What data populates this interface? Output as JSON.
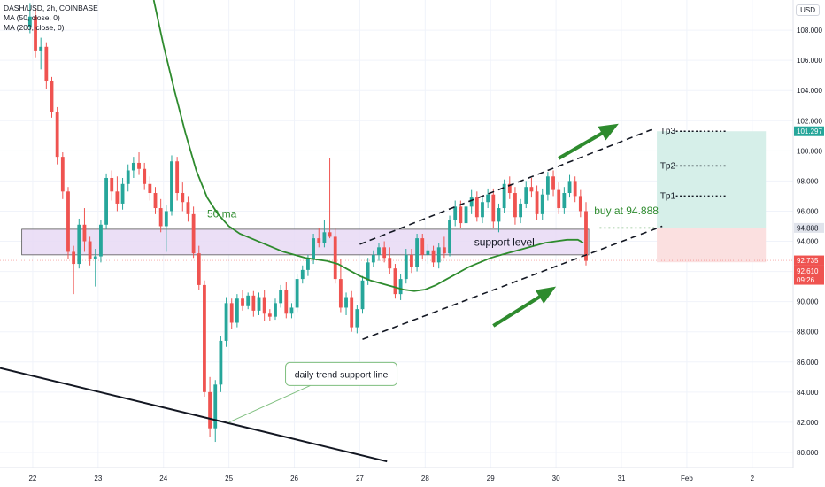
{
  "legend": {
    "symbol": "DASH/USD, 2h, COINBASE",
    "ma50": "MA (50, close, 0)",
    "ma200": "MA (200, close, 0)"
  },
  "currency": "USD",
  "colors": {
    "up": "#26a69a",
    "down": "#ef5350",
    "ma50": "#2e8b2e",
    "zone_fill": "#e8d9f5",
    "zone_stroke": "#555555",
    "target_fill": "#d6efe9",
    "stop_fill": "#fbe0e0",
    "arrow": "#2e8b2e",
    "trend": "#131722"
  },
  "chart_data": {
    "type": "candlestick",
    "y_axis": {
      "ylim": [
        79,
        110
      ],
      "ticks": [
        "80.000",
        "82.000",
        "84.000",
        "86.000",
        "88.000",
        "90.000",
        "92.000",
        "94.000",
        "96.000",
        "98.000",
        "100.000",
        "102.000",
        "104.000",
        "106.000",
        "108.000"
      ]
    },
    "x_axis": {
      "labels": [
        "22",
        "23",
        "24",
        "25",
        "26",
        "27",
        "28",
        "29",
        "30",
        "31",
        "Feb",
        "2"
      ],
      "label_index": [
        0.5,
        12.5,
        24.5,
        36.5,
        48.5,
        60.5,
        72.5,
        84.5,
        96.5,
        108.5,
        120.5,
        132.5
      ],
      "index_range": [
        -5.5,
        140
      ]
    },
    "candles": [
      [
        108.2,
        109.8,
        107.8,
        108.9
      ],
      [
        108.9,
        109.4,
        106.2,
        106.6
      ],
      [
        106.6,
        107.5,
        105.4,
        106.9
      ],
      [
        106.9,
        107.2,
        104.1,
        104.6
      ],
      [
        104.6,
        104.9,
        102.2,
        102.6
      ],
      [
        102.6,
        102.9,
        99.1,
        99.6
      ],
      [
        99.6,
        99.9,
        96.8,
        97.3
      ],
      [
        97.3,
        97.6,
        92.8,
        93.3
      ],
      [
        93.3,
        93.7,
        90.5,
        92.5
      ],
      [
        92.5,
        95.5,
        92.2,
        95.1
      ],
      [
        95.1,
        96.2,
        93.3,
        94.0
      ],
      [
        94.0,
        94.3,
        92.4,
        92.8
      ],
      [
        92.8,
        93.5,
        91.0,
        93.0
      ],
      [
        93.0,
        95.4,
        92.6,
        95.1
      ],
      [
        95.1,
        98.5,
        94.8,
        98.2
      ],
      [
        98.2,
        98.7,
        96.7,
        97.3
      ],
      [
        97.3,
        98.3,
        96.0,
        96.5
      ],
      [
        96.5,
        98.2,
        96.1,
        97.8
      ],
      [
        97.8,
        99.1,
        97.3,
        98.7
      ],
      [
        98.7,
        99.6,
        98.2,
        99.2
      ],
      [
        99.2,
        99.9,
        98.4,
        98.8
      ],
      [
        98.8,
        99.2,
        97.4,
        97.8
      ],
      [
        97.8,
        98.3,
        96.7,
        97.2
      ],
      [
        97.2,
        97.6,
        95.8,
        96.2
      ],
      [
        96.2,
        96.8,
        94.6,
        95.0
      ],
      [
        95.0,
        96.4,
        93.3,
        96.0
      ],
      [
        96.0,
        99.7,
        95.7,
        99.3
      ],
      [
        99.3,
        99.6,
        96.7,
        97.2
      ],
      [
        97.2,
        97.9,
        96.0,
        96.6
      ],
      [
        96.6,
        97.0,
        95.3,
        95.8
      ],
      [
        95.8,
        96.3,
        92.9,
        93.2
      ],
      [
        93.2,
        93.7,
        90.8,
        91.1
      ],
      [
        91.1,
        91.4,
        83.7,
        84.0
      ],
      [
        84.0,
        85.0,
        81.0,
        81.6
      ],
      [
        81.6,
        84.8,
        80.7,
        84.5
      ],
      [
        84.5,
        87.7,
        84.0,
        87.4
      ],
      [
        87.4,
        90.3,
        87.0,
        89.9
      ],
      [
        89.9,
        90.2,
        88.2,
        88.6
      ],
      [
        88.6,
        90.5,
        88.3,
        90.2
      ],
      [
        90.2,
        90.8,
        89.4,
        89.7
      ],
      [
        89.7,
        90.6,
        89.5,
        90.4
      ],
      [
        90.4,
        90.7,
        89.0,
        89.4
      ],
      [
        89.4,
        90.6,
        89.1,
        90.3
      ],
      [
        90.3,
        90.8,
        88.7,
        89.2
      ],
      [
        89.2,
        89.5,
        88.7,
        89.0
      ],
      [
        89.0,
        90.2,
        88.8,
        89.9
      ],
      [
        89.9,
        91.1,
        89.6,
        90.8
      ],
      [
        90.8,
        91.3,
        88.9,
        89.2
      ],
      [
        89.2,
        89.9,
        88.9,
        89.6
      ],
      [
        89.6,
        91.8,
        89.3,
        91.5
      ],
      [
        91.5,
        92.4,
        91.2,
        92.1
      ],
      [
        92.1,
        93.1,
        91.7,
        92.8
      ],
      [
        92.8,
        94.5,
        92.5,
        94.2
      ],
      [
        94.2,
        94.9,
        93.6,
        93.9
      ],
      [
        93.9,
        95.4,
        93.6,
        94.6
      ],
      [
        94.6,
        99.5,
        94.2,
        94.3
      ],
      [
        94.3,
        94.9,
        91.2,
        91.5
      ],
      [
        91.5,
        92.8,
        89.3,
        89.6
      ],
      [
        89.6,
        90.6,
        89.1,
        90.3
      ],
      [
        90.3,
        90.7,
        88.0,
        88.3
      ],
      [
        88.3,
        89.8,
        87.9,
        89.5
      ],
      [
        89.5,
        91.7,
        89.2,
        91.4
      ],
      [
        91.4,
        92.9,
        91.1,
        92.6
      ],
      [
        92.6,
        93.4,
        92.3,
        93.1
      ],
      [
        93.1,
        93.9,
        92.7,
        93.6
      ],
      [
        93.6,
        94.0,
        92.6,
        92.9
      ],
      [
        92.9,
        93.6,
        91.8,
        92.2
      ],
      [
        92.2,
        92.5,
        90.2,
        90.5
      ],
      [
        90.5,
        91.8,
        90.1,
        91.5
      ],
      [
        91.5,
        93.5,
        91.2,
        93.1
      ],
      [
        93.1,
        93.5,
        91.9,
        92.3
      ],
      [
        92.3,
        94.5,
        92.0,
        94.2
      ],
      [
        94.2,
        94.5,
        92.8,
        93.1
      ],
      [
        93.1,
        93.8,
        92.5,
        93.4
      ],
      [
        93.4,
        93.7,
        92.3,
        92.6
      ],
      [
        92.6,
        93.9,
        92.2,
        93.6
      ],
      [
        93.6,
        94.3,
        92.9,
        93.2
      ],
      [
        93.2,
        95.7,
        93.0,
        95.4
      ],
      [
        95.4,
        96.7,
        95.0,
        96.3
      ],
      [
        96.3,
        96.7,
        94.9,
        95.2
      ],
      [
        95.2,
        96.6,
        94.8,
        96.3
      ],
      [
        96.3,
        97.4,
        95.8,
        96.9
      ],
      [
        96.9,
        97.3,
        95.3,
        95.6
      ],
      [
        95.6,
        96.9,
        95.2,
        96.6
      ],
      [
        96.6,
        97.5,
        96.2,
        97.1
      ],
      [
        97.1,
        97.5,
        94.9,
        95.3
      ],
      [
        95.3,
        96.5,
        94.6,
        96.2
      ],
      [
        96.2,
        98.1,
        95.9,
        97.8
      ],
      [
        97.8,
        98.3,
        96.8,
        97.2
      ],
      [
        97.2,
        97.6,
        95.1,
        95.6
      ],
      [
        95.6,
        96.8,
        95.2,
        96.5
      ],
      [
        96.5,
        98.0,
        96.2,
        97.6
      ],
      [
        97.6,
        98.2,
        96.9,
        97.3
      ],
      [
        97.3,
        97.7,
        95.4,
        95.8
      ],
      [
        95.8,
        97.5,
        95.4,
        97.1
      ],
      [
        97.1,
        98.6,
        96.7,
        98.3
      ],
      [
        98.3,
        98.7,
        97.0,
        97.4
      ],
      [
        97.4,
        97.9,
        95.8,
        96.2
      ],
      [
        96.2,
        97.6,
        95.8,
        97.2
      ],
      [
        97.2,
        98.4,
        96.9,
        98.0
      ],
      [
        98.0,
        98.3,
        96.6,
        97.0
      ],
      [
        97.0,
        97.4,
        95.6,
        96.0
      ],
      [
        96.0,
        96.6,
        92.4,
        92.7
      ]
    ],
    "ma50": [
      [
        22.7,
        110.0
      ],
      [
        24.5,
        107.0
      ],
      [
        26.5,
        104.0
      ],
      [
        28.5,
        101.2
      ],
      [
        30.5,
        98.7
      ],
      [
        32.5,
        96.9
      ],
      [
        34.5,
        95.8
      ],
      [
        36.5,
        95.0
      ],
      [
        38.5,
        94.5
      ],
      [
        40.5,
        94.2
      ],
      [
        42.5,
        93.9
      ],
      [
        44.5,
        93.6
      ],
      [
        46.5,
        93.3
      ],
      [
        48.5,
        93.1
      ],
      [
        50.5,
        92.9
      ],
      [
        52.5,
        92.8
      ],
      [
        54.5,
        92.7
      ],
      [
        56.5,
        92.5
      ],
      [
        58.5,
        92.1
      ],
      [
        60.5,
        91.7
      ],
      [
        62.5,
        91.4
      ],
      [
        64.5,
        91.2
      ],
      [
        66.5,
        91.0
      ],
      [
        68.5,
        90.8
      ],
      [
        70.5,
        90.7
      ],
      [
        72.5,
        90.8
      ],
      [
        74.5,
        91.1
      ],
      [
        76.5,
        91.5
      ],
      [
        78.5,
        91.9
      ],
      [
        80.5,
        92.3
      ],
      [
        82.5,
        92.6
      ],
      [
        84.5,
        92.9
      ],
      [
        86.5,
        93.1
      ],
      [
        88.5,
        93.3
      ],
      [
        90.5,
        93.5
      ],
      [
        92.5,
        93.7
      ],
      [
        94.5,
        93.9
      ],
      [
        96.5,
        94.0
      ],
      [
        98.5,
        94.1
      ],
      [
        100.5,
        94.1
      ],
      [
        101.5,
        93.9
      ]
    ],
    "support_zone": {
      "from_index": -1.5,
      "to_index": 102.5,
      "low": 93.1,
      "high": 94.8
    },
    "entry": 94.888,
    "targets": [
      {
        "name": "Tp3",
        "value": 101.297
      },
      {
        "name": "Tp2",
        "value": 99.0
      },
      {
        "name": "Tp1",
        "value": 97.0
      }
    ],
    "stop": 92.61,
    "price_labels": {
      "tp3": "101.297",
      "entry": "94.888",
      "last": "92.735",
      "stop": "92.610",
      "countdown": "09:26"
    },
    "annotations": {
      "ma50": "50 ma",
      "support": "support level",
      "buy": "buy at 94.888",
      "trend": "daily trend support line"
    }
  }
}
